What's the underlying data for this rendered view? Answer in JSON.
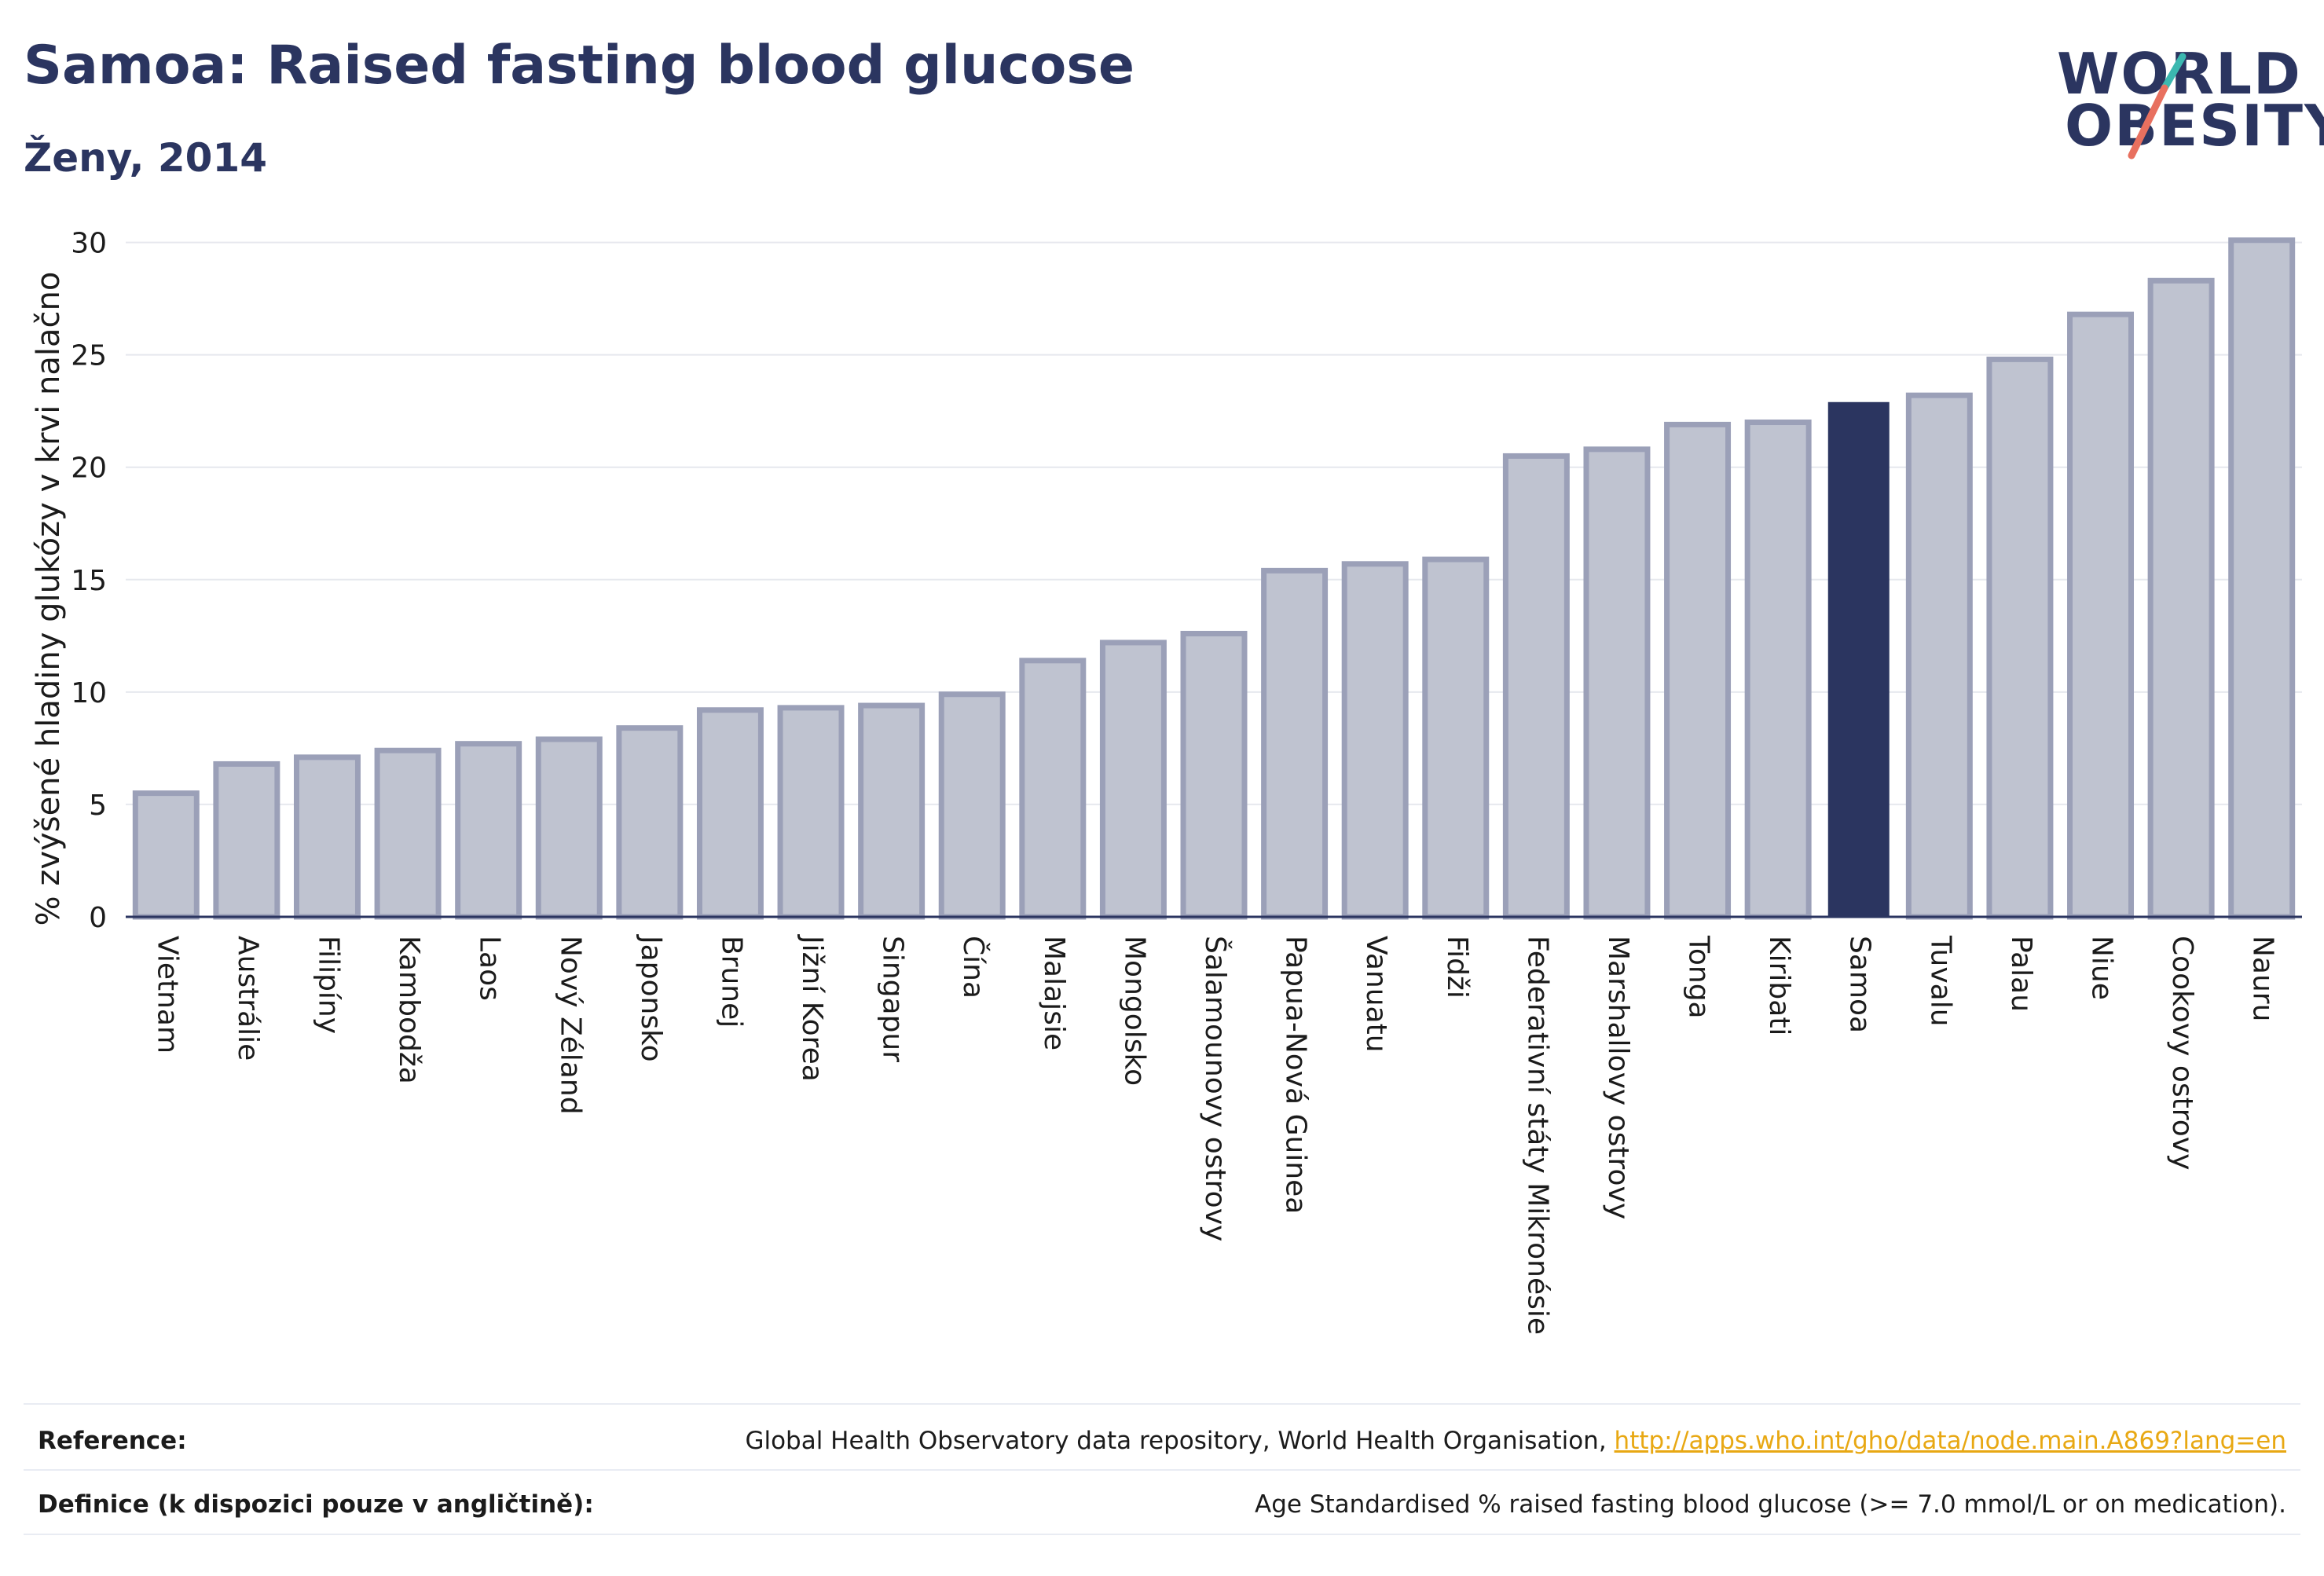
{
  "header": {
    "title": "Samoa: Raised fasting blood glucose",
    "subtitle": "Ženy, 2014",
    "logo_line1": "WORLD",
    "logo_line2": "OBESITY"
  },
  "colors": {
    "title": "#2b3560",
    "bar_fill": "#bfc3d0",
    "bar_stroke": "#9ba0b8",
    "highlight_bar": "#2b3560",
    "grid": "#e6e8ee",
    "link": "#e8a813",
    "logo_teal": "#3bb8b0",
    "logo_coral": "#e8705f"
  },
  "chart_data": {
    "type": "bar",
    "title": "Samoa: Raised fasting blood glucose",
    "subtitle": "Ženy, 2014",
    "xlabel": "",
    "ylabel": "% zvýšené hladiny glukózy v krvi nalačno",
    "ylim": [
      0,
      31
    ],
    "yticks": [
      0,
      5,
      10,
      15,
      20,
      25,
      30
    ],
    "grid": true,
    "highlight": "Samoa",
    "categories": [
      "Vietnam",
      "Austrálie",
      "Filipíny",
      "Kambodža",
      "Laos",
      "Nový Zéland",
      "Japonsko",
      "Brunej",
      "Jižní Korea",
      "Singapur",
      "Čína",
      "Malajsie",
      "Mongolsko",
      "Šalamounovy ostrovy",
      "Papua-Nová Guinea",
      "Vanuatu",
      "Fidži",
      "Federativní státy Mikronésie",
      "Marshallovy ostrovy",
      "Tonga",
      "Kiribati",
      "Samoa",
      "Tuvalu",
      "Palau",
      "Niue",
      "Cookovy ostrovy",
      "Nauru"
    ],
    "values": [
      5.5,
      6.8,
      7.1,
      7.4,
      7.7,
      7.9,
      8.4,
      9.2,
      9.3,
      9.4,
      9.9,
      11.4,
      12.2,
      12.6,
      15.4,
      15.7,
      15.9,
      20.5,
      20.8,
      21.9,
      22.0,
      22.9,
      23.2,
      24.8,
      26.8,
      28.3,
      30.1
    ]
  },
  "footer": {
    "reference_label": "Reference:",
    "reference_text": "Global Health Observatory data repository, World Health Organisation, ",
    "reference_link": "http://apps.who.int/gho/data/node.main.A869?lang=en",
    "definition_label": "Definice (k dispozici pouze v angličtině):",
    "definition_text": "Age Standardised % raised fasting blood glucose (>= 7.0 mmol/L or on medication)."
  }
}
